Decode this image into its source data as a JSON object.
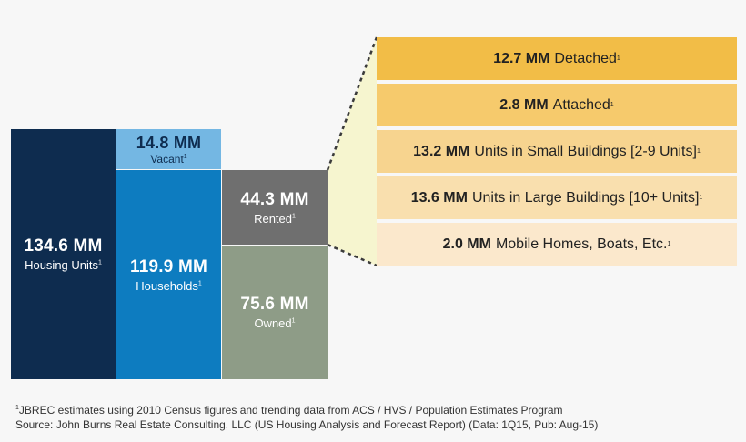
{
  "chart_data": {
    "type": "bar",
    "title": "",
    "blocks": [
      {
        "id": "housing",
        "value": "134.6 MM",
        "label": "Housing Units",
        "value_mm": 134.6,
        "color": "#0e2c4f"
      },
      {
        "id": "vacant",
        "value": "14.8 MM",
        "label": "Vacant",
        "value_mm": 14.8,
        "color": "#74b7e3"
      },
      {
        "id": "households",
        "value": "119.9 MM",
        "label": "Households",
        "value_mm": 119.9,
        "color": "#0d7cc0"
      },
      {
        "id": "rented",
        "value": "44.3 MM",
        "label": "Rented",
        "value_mm": 44.3,
        "color": "#6f6f6f"
      },
      {
        "id": "owned",
        "value": "75.6 MM",
        "label": "Owned",
        "value_mm": 75.6,
        "color": "#8e9c87"
      }
    ],
    "rental_breakdown": [
      {
        "value": "12.7 MM",
        "label": "Detached",
        "value_mm": 12.7,
        "color": "#f2bd47"
      },
      {
        "value": "2.8 MM",
        "label": "Attached",
        "value_mm": 2.8,
        "color": "#f6ca6c"
      },
      {
        "value": "13.2 MM",
        "label": "Units in Small Buildings [2-9 Units]",
        "value_mm": 13.2,
        "color": "#f7d48f"
      },
      {
        "value": "13.6 MM",
        "label": "Units in Large Buildings [10+ Units]",
        "value_mm": 13.6,
        "color": "#f9dfae"
      },
      {
        "value": "2.0 MM",
        "label": "Mobile Homes, Boats, Etc.",
        "value_mm": 2.0,
        "color": "#fbe8cc"
      }
    ],
    "footnote_marker": "1"
  },
  "footnote": {
    "marker": "1",
    "line1": "JBREC estimates using 2010 Census figures and trending data from ACS / HVS / Population Estimates Program",
    "line2": "Source: John Burns Real Estate Consulting, LLC (US Housing Analysis and Forecast Report) (Data: 1Q15, Pub: Aug-15)"
  }
}
